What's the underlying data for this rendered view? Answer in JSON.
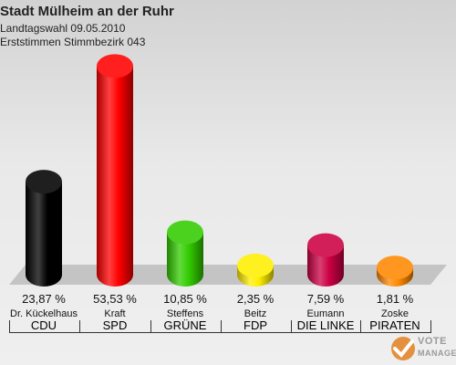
{
  "chart_data": {
    "type": "bar",
    "title": "Stadt Mülheim an der Ruhr",
    "subtitle": "Landtagswahl 09.05.2010",
    "subtitle2": "Erststimmen Stimmbezirk 043",
    "ylim": [
      0,
      55
    ],
    "legend": "none",
    "grid": false,
    "categories": [
      "CDU",
      "SPD",
      "GRÜNE",
      "FDP",
      "DIE LINKE",
      "PIRATEN"
    ],
    "candidates": [
      "Dr. Kückelhaus",
      "Kraft",
      "Steffens",
      "Beitz",
      "Eumann",
      "Zoske"
    ],
    "values": [
      23.87,
      53.53,
      10.85,
      2.35,
      7.59,
      1.81
    ],
    "value_labels": [
      "23,87 %",
      "53,53 %",
      "10,85 %",
      "2,35 %",
      "7,59 %",
      "1,81 %"
    ],
    "colors": [
      "#000000",
      "#ff0000",
      "#33cc00",
      "#ffee00",
      "#cc0044",
      "#ff8800"
    ]
  },
  "logo": {
    "line1": "VOTE",
    "line2": "MANAGER"
  }
}
